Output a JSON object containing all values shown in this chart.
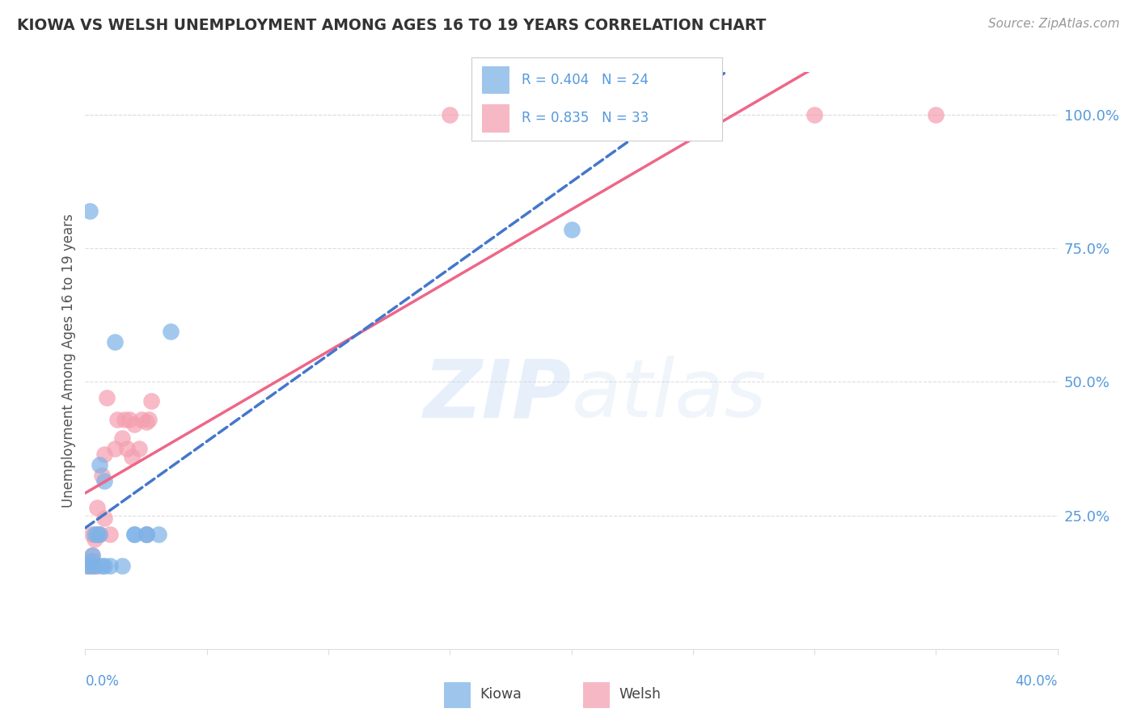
{
  "title": "KIOWA VS WELSH UNEMPLOYMENT AMONG AGES 16 TO 19 YEARS CORRELATION CHART",
  "source": "Source: ZipAtlas.com",
  "ylabel": "Unemployment Among Ages 16 to 19 years",
  "watermark": "ZIPatlas",
  "kiowa_R": 0.404,
  "kiowa_N": 24,
  "welsh_R": 0.835,
  "welsh_N": 33,
  "kiowa_color": "#7EB3E8",
  "welsh_color": "#F4A0B0",
  "kiowa_line_color": "#4477CC",
  "welsh_line_color": "#EE6688",
  "title_color": "#333333",
  "source_color": "#999999",
  "axis_label_color": "#5599DD",
  "grid_color": "#DDDDDD",
  "background_color": "#FFFFFF",
  "kiowa_x": [
    0.001,
    0.002,
    0.003,
    0.003,
    0.003,
    0.004,
    0.004,
    0.005,
    0.006,
    0.006,
    0.007,
    0.008,
    0.008,
    0.01,
    0.012,
    0.015,
    0.02,
    0.02,
    0.025,
    0.025,
    0.03,
    0.035,
    0.2,
    0.21
  ],
  "kiowa_y": [
    0.155,
    0.82,
    0.155,
    0.165,
    0.175,
    0.155,
    0.215,
    0.215,
    0.215,
    0.345,
    0.155,
    0.155,
    0.315,
    0.155,
    0.575,
    0.155,
    0.215,
    0.215,
    0.215,
    0.215,
    0.215,
    0.595,
    0.785,
    1.0
  ],
  "welsh_x": [
    0.001,
    0.002,
    0.002,
    0.003,
    0.003,
    0.004,
    0.005,
    0.005,
    0.006,
    0.007,
    0.008,
    0.008,
    0.009,
    0.01,
    0.012,
    0.013,
    0.015,
    0.016,
    0.017,
    0.018,
    0.019,
    0.02,
    0.022,
    0.023,
    0.025,
    0.025,
    0.026,
    0.027,
    0.15,
    0.2,
    0.25,
    0.3,
    0.35
  ],
  "welsh_y": [
    0.155,
    0.155,
    0.165,
    0.175,
    0.215,
    0.205,
    0.155,
    0.265,
    0.215,
    0.325,
    0.365,
    0.245,
    0.47,
    0.215,
    0.375,
    0.43,
    0.395,
    0.43,
    0.375,
    0.43,
    0.36,
    0.42,
    0.375,
    0.43,
    0.215,
    0.425,
    0.43,
    0.465,
    1.0,
    1.0,
    1.0,
    1.0,
    1.0
  ],
  "xlim": [
    0.0,
    0.4
  ],
  "ylim": [
    0.0,
    1.08
  ],
  "yticks": [
    0.25,
    0.5,
    0.75,
    1.0
  ],
  "ytick_labels": [
    "25.0%",
    "50.0%",
    "75.0%",
    "100.0%"
  ],
  "xtick_vals": [
    0.0,
    0.05,
    0.1,
    0.15,
    0.2,
    0.25,
    0.3,
    0.35,
    0.4
  ]
}
